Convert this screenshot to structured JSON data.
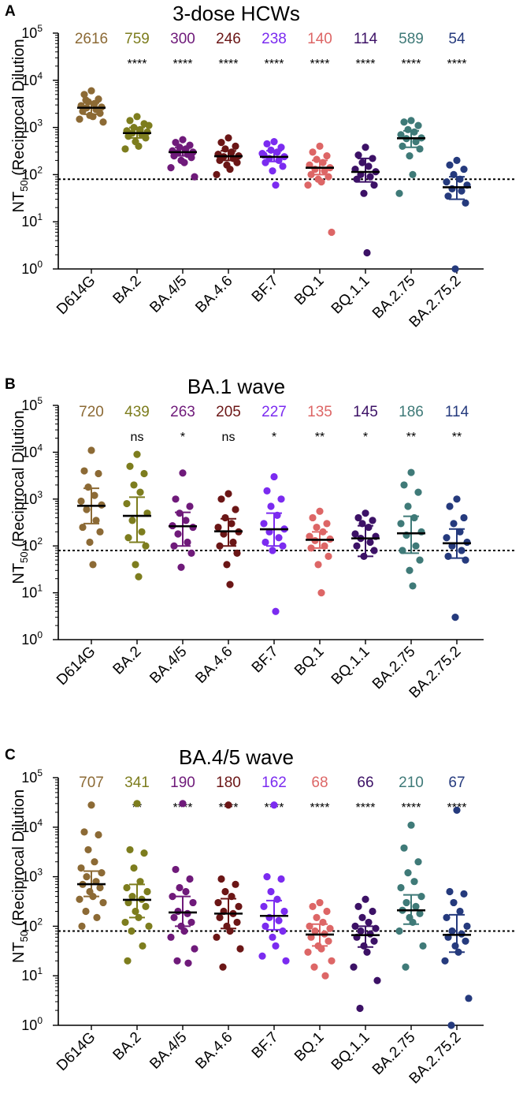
{
  "chart_data": [
    {
      "type": "scatter",
      "panel_letter": "A",
      "title": "3-dose HCWs",
      "ylabel_main": "NT",
      "ylabel_sub": "50",
      "ylabel_rest": " (Reciprocal Dilution",
      "categories": [
        "D614G",
        "BA.2",
        "BA.4/5",
        "BA.4.6",
        "BF.7",
        "BQ.1",
        "BQ.1.1",
        "BA.2.75",
        "BA.2.75.2"
      ],
      "colors": [
        "#8C6A35",
        "#7D7D1E",
        "#6F1A7A",
        "#6B1616",
        "#7B2BF0",
        "#DD6666",
        "#3C1166",
        "#3F7A78",
        "#253A7D"
      ],
      "medians": [
        2616,
        759,
        300,
        246,
        238,
        140,
        114,
        589,
        54
      ],
      "median_labels": [
        "2616",
        "759",
        "300",
        "246",
        "238",
        "140",
        "114",
        "589",
        "54"
      ],
      "significance": [
        "",
        "****",
        "****",
        "****",
        "****",
        "****",
        "****",
        "****",
        "****"
      ],
      "error_bars": [
        [
          1900,
          3300
        ],
        [
          600,
          1000
        ],
        [
          250,
          380
        ],
        [
          200,
          320
        ],
        [
          190,
          320
        ],
        [
          100,
          200
        ],
        [
          70,
          220
        ],
        [
          380,
          850
        ],
        [
          30,
          90
        ]
      ],
      "points": [
        [
          6000,
          5000,
          4000,
          3500,
          3200,
          2900,
          2700,
          2600,
          2400,
          2200,
          2000,
          1800,
          1700,
          1500,
          1300,
          3800
        ],
        [
          1700,
          1400,
          1200,
          1000,
          900,
          850,
          800,
          760,
          700,
          650,
          600,
          500,
          400,
          350,
          1100
        ],
        [
          550,
          480,
          420,
          380,
          350,
          320,
          300,
          290,
          270,
          250,
          230,
          200,
          180,
          140,
          90
        ],
        [
          600,
          480,
          400,
          350,
          300,
          270,
          250,
          240,
          220,
          200,
          180,
          160,
          130,
          100
        ],
        [
          500,
          450,
          380,
          330,
          300,
          260,
          240,
          220,
          200,
          180,
          150,
          120,
          60,
          280
        ],
        [
          400,
          300,
          250,
          210,
          180,
          160,
          140,
          130,
          120,
          100,
          90,
          80,
          70,
          60,
          6
        ],
        [
          380,
          260,
          220,
          180,
          150,
          130,
          115,
          100,
          90,
          80,
          60,
          40,
          2.2
        ],
        [
          1400,
          1300,
          1100,
          900,
          800,
          700,
          600,
          580,
          500,
          400,
          350,
          250,
          100,
          40
        ],
        [
          200,
          160,
          130,
          100,
          80,
          70,
          60,
          50,
          45,
          35,
          25,
          1
        ]
      ],
      "y_axis": {
        "scale": "log",
        "ylim": [
          1,
          100000
        ],
        "ticks": [
          1,
          10,
          100,
          1000,
          10000,
          100000
        ],
        "tick_exponents": [
          "0",
          "1",
          "2",
          "3",
          "4",
          "5"
        ]
      },
      "threshold": 80
    },
    {
      "type": "scatter",
      "panel_letter": "B",
      "title": "BA.1 wave",
      "ylabel_main": "NT",
      "ylabel_sub": "50",
      "ylabel_rest": " (Reciprocal Dilution",
      "categories": [
        "D614G",
        "BA.2",
        "BA.4/5",
        "BA.4.6",
        "BF.7",
        "BQ.1",
        "BQ.1.1",
        "BA.2.75",
        "BA.2.75.2"
      ],
      "colors": [
        "#8C6A35",
        "#7D7D1E",
        "#6F1A7A",
        "#6B1616",
        "#7B2BF0",
        "#DD6666",
        "#3C1166",
        "#3F7A78",
        "#253A7D"
      ],
      "medians": [
        720,
        439,
        263,
        205,
        227,
        135,
        145,
        186,
        114
      ],
      "median_labels": [
        "720",
        "439",
        "263",
        "205",
        "227",
        "135",
        "145",
        "186",
        "114"
      ],
      "significance": [
        "",
        "ns",
        "*",
        "ns",
        "*",
        "**",
        "*",
        "**",
        "**"
      ],
      "error_bars": [
        [
          300,
          1700
        ],
        [
          120,
          1100
        ],
        [
          100,
          520
        ],
        [
          100,
          380
        ],
        [
          100,
          500
        ],
        [
          90,
          200
        ],
        [
          60,
          270
        ],
        [
          70,
          430
        ],
        [
          55,
          230
        ]
      ],
      "points": [
        [
          11000,
          4000,
          3500,
          1800,
          1200,
          900,
          750,
          600,
          350,
          250,
          200,
          120,
          40
        ],
        [
          9000,
          5000,
          3500,
          2000,
          1400,
          800,
          500,
          350,
          200,
          150,
          100,
          40,
          22
        ],
        [
          3600,
          1000,
          700,
          500,
          350,
          270,
          250,
          180,
          120,
          100,
          70,
          35
        ],
        [
          1300,
          1000,
          600,
          400,
          300,
          250,
          200,
          180,
          120,
          100,
          70,
          40,
          15
        ],
        [
          3000,
          1500,
          1000,
          700,
          450,
          300,
          230,
          200,
          150,
          120,
          100,
          80,
          4
        ],
        [
          550,
          400,
          300,
          250,
          200,
          160,
          140,
          130,
          100,
          90,
          60,
          40,
          10
        ],
        [
          500,
          400,
          350,
          300,
          250,
          180,
          160,
          145,
          120,
          100,
          80,
          60
        ],
        [
          3700,
          2000,
          1400,
          700,
          400,
          300,
          200,
          170,
          100,
          80,
          50,
          30,
          14
        ],
        [
          1000,
          700,
          400,
          300,
          200,
          150,
          120,
          100,
          80,
          60,
          50,
          3
        ]
      ],
      "y_axis": {
        "scale": "log",
        "ylim": [
          1,
          100000
        ],
        "ticks": [
          1,
          10,
          100,
          1000,
          10000,
          100000
        ],
        "tick_exponents": [
          "0",
          "1",
          "2",
          "3",
          "4",
          "5"
        ]
      },
      "threshold": 80
    },
    {
      "type": "scatter",
      "panel_letter": "C",
      "title": "BA.4/5 wave",
      "ylabel_main": "NT",
      "ylabel_sub": "50",
      "ylabel_rest": " (Reciprocal Dilution",
      "categories": [
        "D614G",
        "BA.2",
        "BA.4/5",
        "BA.4.6",
        "BF.7",
        "BQ.1",
        "BQ.1.1",
        "BA.2.75",
        "BA.2.75.2"
      ],
      "colors": [
        "#8C6A35",
        "#7D7D1E",
        "#6F1A7A",
        "#6B1616",
        "#7B2BF0",
        "#DD6666",
        "#3C1166",
        "#3F7A78",
        "#253A7D"
      ],
      "medians": [
        707,
        341,
        190,
        180,
        162,
        68,
        66,
        210,
        67
      ],
      "median_labels": [
        "707",
        "341",
        "190",
        "180",
        "162",
        "68",
        "66",
        "210",
        "67"
      ],
      "significance": [
        "",
        "**",
        "****",
        "****",
        "****",
        "****",
        "****",
        "****",
        "****"
      ],
      "error_bars": [
        [
          400,
          1300
        ],
        [
          150,
          700
        ],
        [
          100,
          400
        ],
        [
          90,
          360
        ],
        [
          85,
          330
        ],
        [
          40,
          110
        ],
        [
          38,
          100
        ],
        [
          110,
          430
        ],
        [
          30,
          170
        ]
      ],
      "points": [
        [
          28000,
          8000,
          7000,
          3500,
          2000,
          1500,
          1200,
          1000,
          800,
          700,
          600,
          500,
          400,
          350,
          300,
          200,
          150,
          100
        ],
        [
          30000,
          3500,
          3000,
          1500,
          800,
          600,
          500,
          400,
          350,
          300,
          250,
          200,
          150,
          120,
          100,
          80,
          40,
          20
        ],
        [
          30000,
          1400,
          900,
          600,
          500,
          400,
          300,
          200,
          180,
          150,
          120,
          100,
          80,
          60,
          35,
          20,
          18
        ],
        [
          28000,
          900,
          700,
          500,
          400,
          300,
          250,
          200,
          180,
          150,
          120,
          100,
          80,
          60,
          35,
          15
        ],
        [
          28000,
          1000,
          900,
          500,
          350,
          250,
          200,
          150,
          130,
          100,
          80,
          60,
          40,
          25,
          20
        ],
        [
          300,
          250,
          200,
          150,
          120,
          100,
          90,
          80,
          70,
          60,
          50,
          40,
          35,
          30,
          20,
          15,
          10
        ],
        [
          350,
          250,
          200,
          150,
          120,
          100,
          90,
          80,
          70,
          60,
          50,
          40,
          30,
          15,
          8,
          2.2
        ],
        [
          11000,
          3800,
          2000,
          1200,
          800,
          600,
          400,
          300,
          250,
          210,
          180,
          150,
          120,
          80,
          40,
          15
        ],
        [
          22000,
          500,
          450,
          300,
          200,
          150,
          100,
          80,
          70,
          60,
          50,
          40,
          30,
          20,
          3.5,
          1
        ]
      ],
      "y_axis": {
        "scale": "log",
        "ylim": [
          1,
          100000
        ],
        "ticks": [
          1,
          10,
          100,
          1000,
          10000,
          100000
        ],
        "tick_exponents": [
          "0",
          "1",
          "2",
          "3",
          "4",
          "5"
        ]
      },
      "threshold": 80
    }
  ]
}
